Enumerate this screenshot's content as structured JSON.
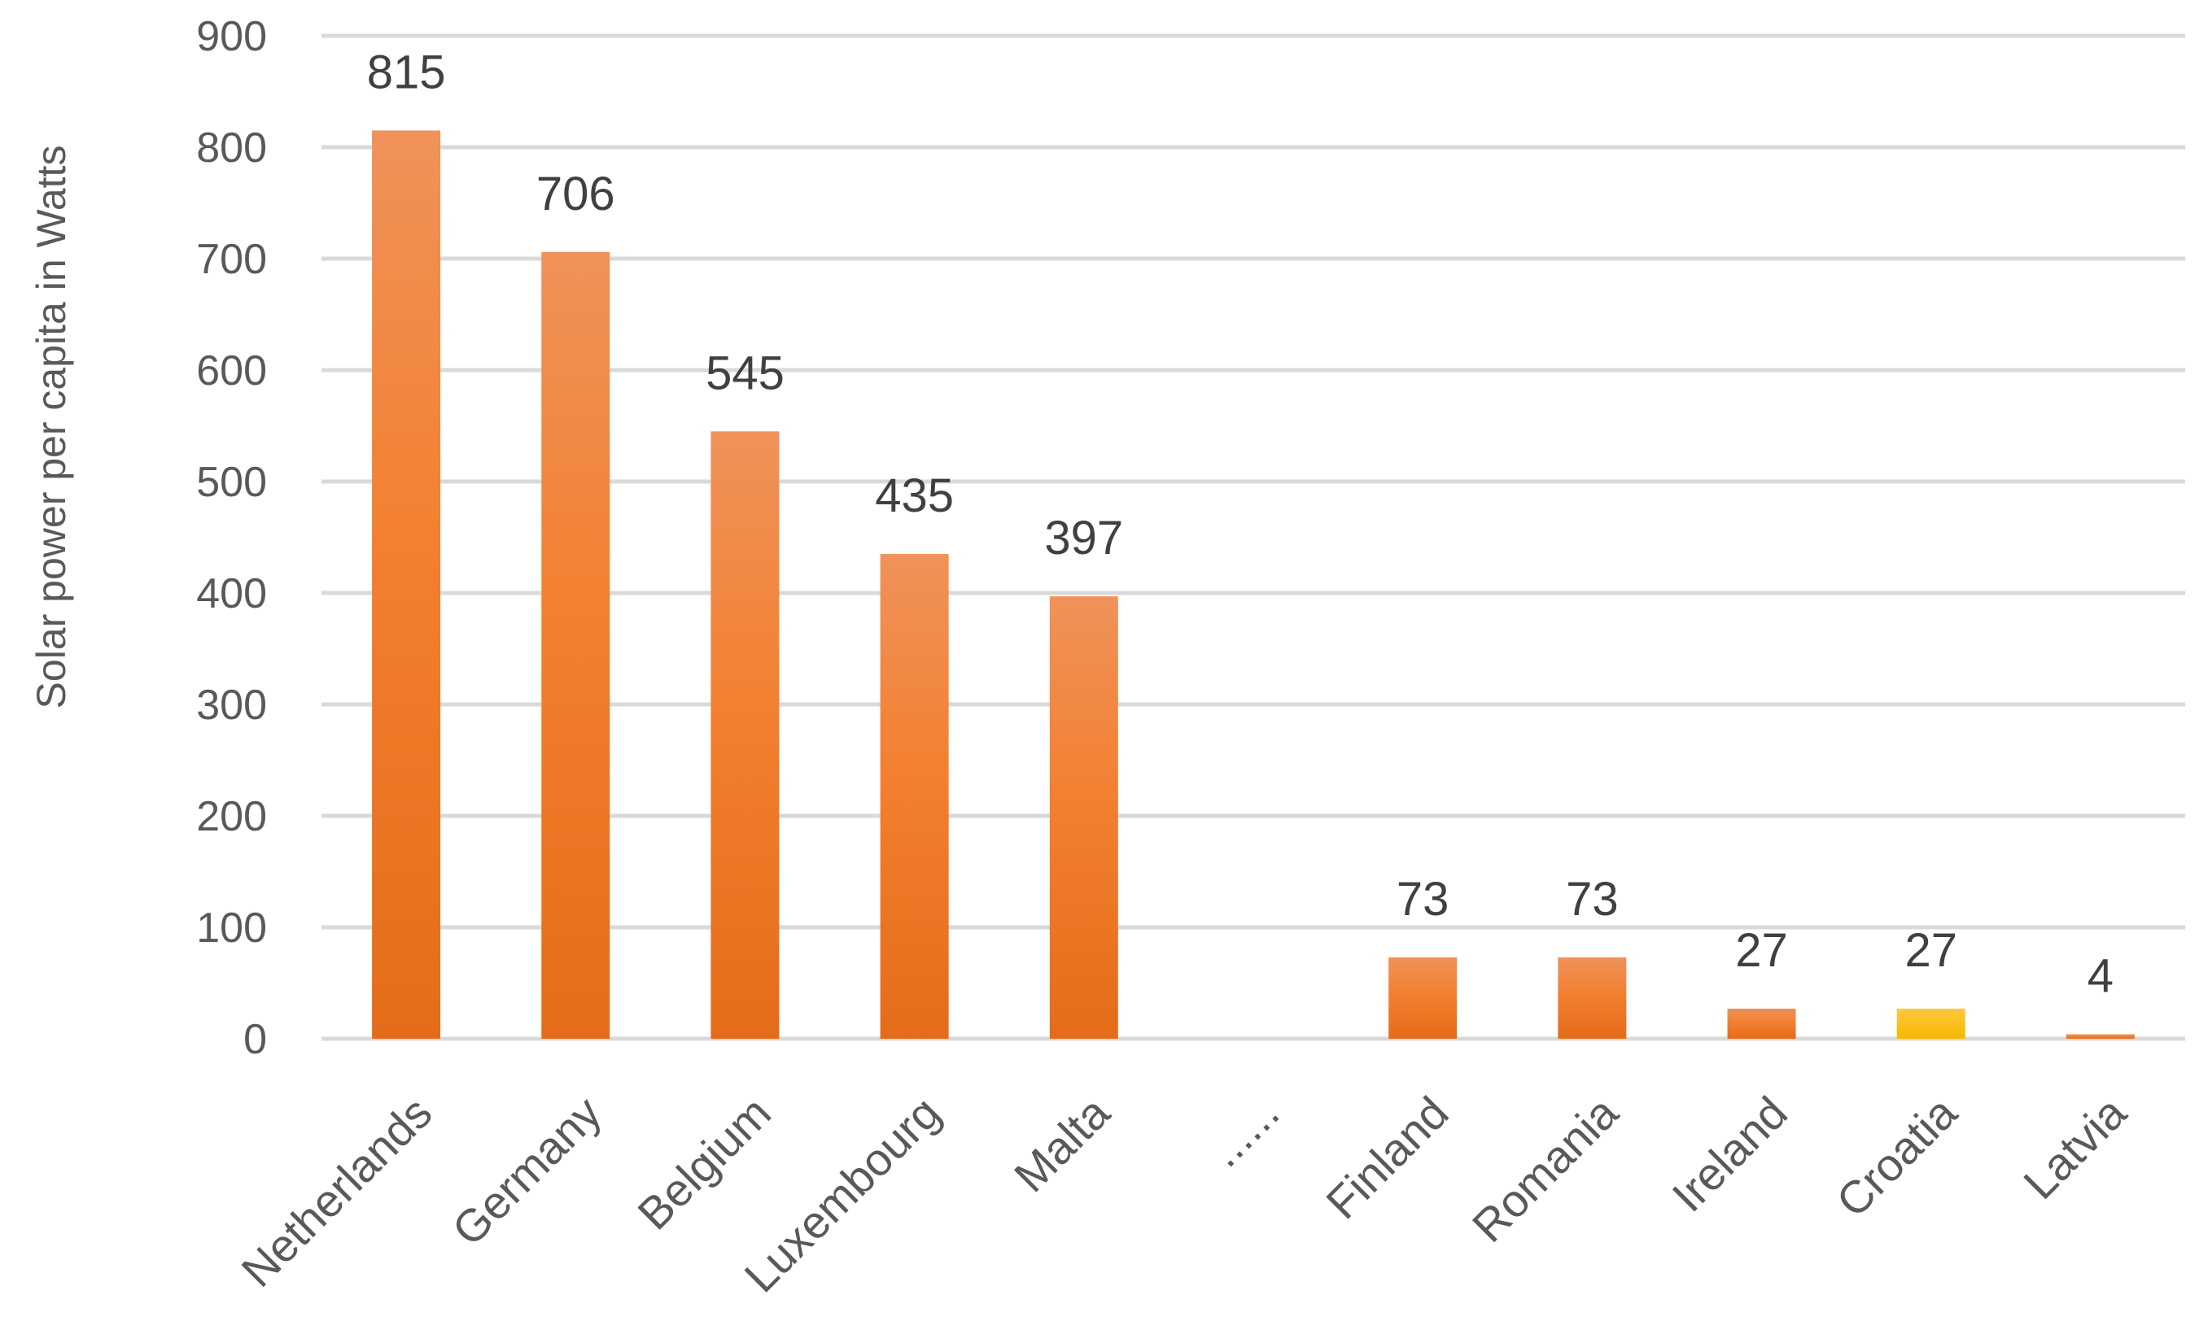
{
  "chart_data": {
    "type": "bar",
    "categories": [
      "Netherlands",
      "Germany",
      "Belgium",
      "Luxembourg",
      "Malta",
      "......",
      "Finland",
      "Romania",
      "Ireland",
      "Croatia",
      "Latvia"
    ],
    "values": [
      815,
      706,
      545,
      435,
      397,
      null,
      73,
      73,
      27,
      27,
      4
    ],
    "data_labels": [
      "815",
      "706",
      "545",
      "435",
      "397",
      "",
      "73",
      "73",
      "27",
      "27",
      "4"
    ],
    "highlight_category": "Croatia",
    "ylabel": "Solar power per capita in Watts",
    "ylim": [
      0,
      900
    ],
    "yticks": [
      0,
      100,
      200,
      300,
      400,
      500,
      600,
      700,
      800,
      900
    ],
    "grid": true,
    "legend": "none",
    "colors": {
      "bar_top": "#f0925a",
      "bar_mid": "#f28030",
      "bar_bottom": "#e46c19",
      "highlight_top": "#ffc83d",
      "highlight_bottom": "#f7b800"
    }
  }
}
